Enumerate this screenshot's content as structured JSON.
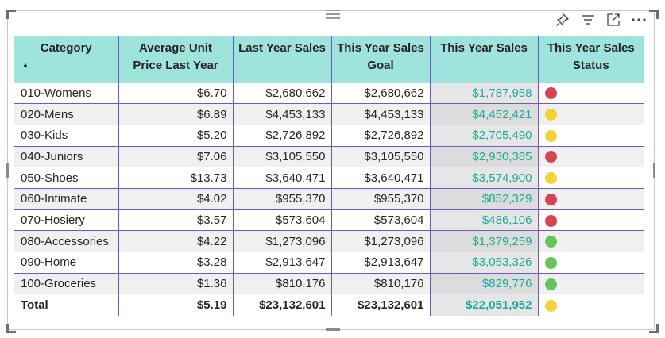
{
  "colors": {
    "header_bg": "#9fe3dd",
    "grid_line": "#6a5acd",
    "sales_text": "#1aab9b",
    "status_red": "#d64550",
    "status_yellow": "#f2d33a",
    "status_green": "#66c45a"
  },
  "toolbar": {
    "icons": [
      "pin-icon",
      "filter-icon",
      "focus-mode-icon",
      "more-options-icon"
    ]
  },
  "table": {
    "columns": [
      {
        "label": "Category",
        "sorted": "ascending"
      },
      {
        "label": "Average Unit Price Last Year"
      },
      {
        "label": "Last Year Sales"
      },
      {
        "label": "This Year Sales Goal"
      },
      {
        "label": "This Year Sales"
      },
      {
        "label": "This Year Sales Status"
      }
    ],
    "rows": [
      {
        "category": "010-Womens",
        "avg_price": "$6.70",
        "ly_sales": "$2,680,662",
        "goal": "$2,680,662",
        "ty_sales": "$1,787,958",
        "status": "red"
      },
      {
        "category": "020-Mens",
        "avg_price": "$6.89",
        "ly_sales": "$4,453,133",
        "goal": "$4,453,133",
        "ty_sales": "$4,452,421",
        "status": "yellow"
      },
      {
        "category": "030-Kids",
        "avg_price": "$5.20",
        "ly_sales": "$2,726,892",
        "goal": "$2,726,892",
        "ty_sales": "$2,705,490",
        "status": "yellow"
      },
      {
        "category": "040-Juniors",
        "avg_price": "$7.06",
        "ly_sales": "$3,105,550",
        "goal": "$3,105,550",
        "ty_sales": "$2,930,385",
        "status": "red"
      },
      {
        "category": "050-Shoes",
        "avg_price": "$13.73",
        "ly_sales": "$3,640,471",
        "goal": "$3,640,471",
        "ty_sales": "$3,574,900",
        "status": "yellow"
      },
      {
        "category": "060-Intimate",
        "avg_price": "$4.02",
        "ly_sales": "$955,370",
        "goal": "$955,370",
        "ty_sales": "$852,329",
        "status": "red"
      },
      {
        "category": "070-Hosiery",
        "avg_price": "$3.57",
        "ly_sales": "$573,604",
        "goal": "$573,604",
        "ty_sales": "$486,106",
        "status": "red"
      },
      {
        "category": "080-Accessories",
        "avg_price": "$4.22",
        "ly_sales": "$1,273,096",
        "goal": "$1,273,096",
        "ty_sales": "$1,379,259",
        "status": "green"
      },
      {
        "category": "090-Home",
        "avg_price": "$3.28",
        "ly_sales": "$2,913,647",
        "goal": "$2,913,647",
        "ty_sales": "$3,053,326",
        "status": "green"
      },
      {
        "category": "100-Groceries",
        "avg_price": "$1.36",
        "ly_sales": "$810,176",
        "goal": "$810,176",
        "ty_sales": "$829,776",
        "status": "green"
      }
    ],
    "total": {
      "category": "Total",
      "avg_price": "$5.19",
      "ly_sales": "$23,132,601",
      "goal": "$23,132,601",
      "ty_sales": "$22,051,952",
      "status": "yellow"
    }
  }
}
